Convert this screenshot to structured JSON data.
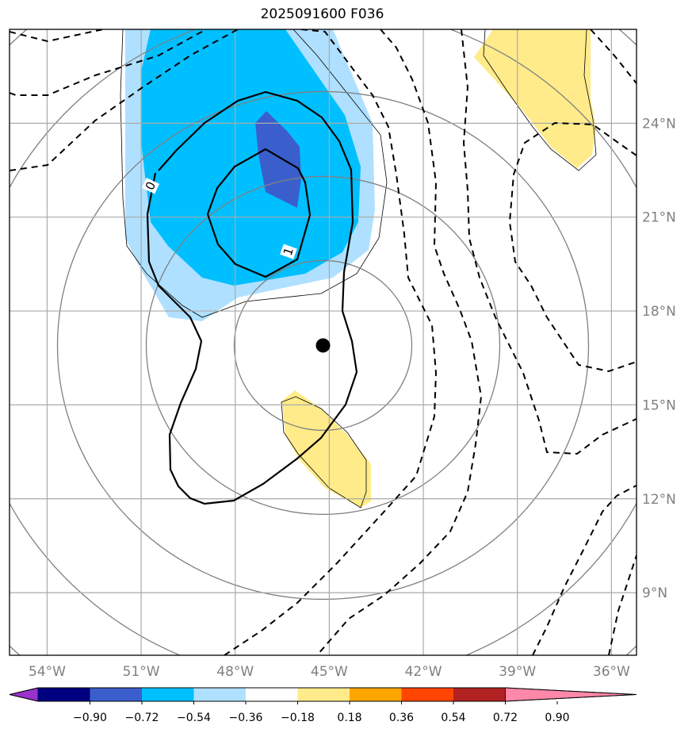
{
  "title": "2025091600 F036",
  "map": {
    "lon_range": [
      -55.2,
      -35.2
    ],
    "lat_range": [
      7.0,
      27.0
    ],
    "lon_ticks": [
      {
        "value": -54,
        "label": "54°W"
      },
      {
        "value": -51,
        "label": "51°W"
      },
      {
        "value": -48,
        "label": "48°W"
      },
      {
        "value": -45,
        "label": "45°W"
      },
      {
        "value": -42,
        "label": "42°W"
      },
      {
        "value": -39,
        "label": "39°W"
      },
      {
        "value": -36,
        "label": "36°W"
      }
    ],
    "lat_ticks": [
      {
        "value": 24,
        "label": "24°N"
      },
      {
        "value": 21,
        "label": "21°N"
      },
      {
        "value": 18,
        "label": "18°N"
      },
      {
        "value": 15,
        "label": "15°N"
      },
      {
        "value": 12,
        "label": "12°N"
      },
      {
        "value": 9,
        "label": "9°N"
      }
    ],
    "gridlines": true,
    "center_marker": {
      "lon": -45.2,
      "lat": 16.9
    },
    "contour_labels": [
      {
        "text": "0",
        "lon": -50.7,
        "lat": 22.0,
        "angle": -65
      },
      {
        "text": "1",
        "lon": -46.3,
        "lat": 19.9,
        "angle": -70
      }
    ],
    "colors": {
      "light_blue": "#b0e0ff",
      "deep_sky_blue": "#00bfff",
      "royal_blue": "#3a5fcd",
      "light_yellow": "#ffeb8a",
      "grid": "#aaaaaa",
      "circle": "#808080"
    }
  },
  "colorbar": {
    "bins": [
      {
        "color": "#9933cc"
      },
      {
        "color": "#000080"
      },
      {
        "color": "#3a5fcd"
      },
      {
        "color": "#00bfff"
      },
      {
        "color": "#b0e0ff"
      },
      {
        "color": "#ffffff"
      },
      {
        "color": "#ffeb8a"
      },
      {
        "color": "#ffa500"
      },
      {
        "color": "#ff4500"
      },
      {
        "color": "#b22222"
      },
      {
        "color": "#ff88aa"
      }
    ],
    "tick_labels": [
      "−0.90",
      "−0.72",
      "−0.54",
      "−0.36",
      "−0.18",
      "0.18",
      "0.36",
      "0.54",
      "0.72",
      "0.90"
    ]
  }
}
